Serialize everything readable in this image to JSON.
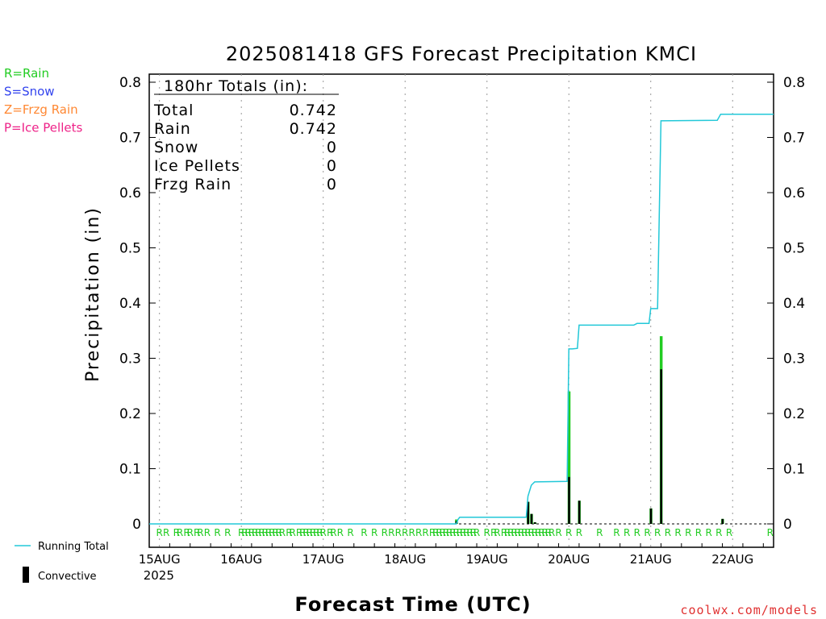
{
  "chart_data": {
    "type": "bar",
    "title": "2025081418 GFS Forecast Precipitation KMCI",
    "xlabel": "Forecast Time (UTC)",
    "ylabel": "Precipitation (in)",
    "ylim": [
      0,
      0.8
    ],
    "yticks": [
      "0",
      "0.1",
      "0.2",
      "0.3",
      "0.4",
      "0.5",
      "0.6",
      "0.7",
      "0.8"
    ],
    "xticks": [
      "15AUG",
      "16AUG",
      "17AUG",
      "18AUG",
      "19AUG",
      "20AUG",
      "21AUG",
      "22AUG"
    ],
    "xtick_year": "2025",
    "grid": true,
    "totals_box": {
      "header": "180hr Totals (in):",
      "rows": [
        {
          "label": "Total",
          "value": "0.742"
        },
        {
          "label": "Rain",
          "value": "0.742"
        },
        {
          "label": "Snow",
          "value": "0"
        },
        {
          "label": "Ice Pellets",
          "value": "0"
        },
        {
          "label": "Frzg Rain",
          "value": "0"
        }
      ]
    },
    "ptype_legend": [
      {
        "label": "R=Rain",
        "color": "#22cc22"
      },
      {
        "label": "S=Snow",
        "color": "#3344ee"
      },
      {
        "label": "Z=Frzg Rain",
        "color": "#ff8833"
      },
      {
        "label": "P=Ice Pellets",
        "color": "#ee2288"
      }
    ],
    "series_legend": [
      {
        "label": "Running Total",
        "color": "#22c8d8"
      },
      {
        "label": "Convective",
        "color": "#000000"
      }
    ],
    "x_units": "hours since 15AUG 00Z",
    "x_range": [
      -3,
      180
    ],
    "rain_bars": [
      {
        "x": 87,
        "v": 0.008,
        "c": 0.005
      },
      {
        "x": 108,
        "v": 0.04,
        "c": 0.04
      },
      {
        "x": 109,
        "v": 0.018,
        "c": 0.018
      },
      {
        "x": 110,
        "v": 0.003,
        "c": 0.003
      },
      {
        "x": 120,
        "v": 0.24,
        "c": 0.085
      },
      {
        "x": 123,
        "v": 0.042,
        "c": 0.042
      },
      {
        "x": 144,
        "v": 0.028,
        "c": 0.028
      },
      {
        "x": 147,
        "v": 0.34,
        "c": 0.28
      },
      {
        "x": 165,
        "v": 0.009,
        "c": 0.009
      }
    ],
    "running_total": [
      [
        -3,
        0
      ],
      [
        87,
        0
      ],
      [
        87.5,
        0.008
      ],
      [
        88,
        0.012
      ],
      [
        107.5,
        0.012
      ],
      [
        108,
        0.05
      ],
      [
        109,
        0.07
      ],
      [
        110,
        0.076
      ],
      [
        119.5,
        0.077
      ],
      [
        120,
        0.317
      ],
      [
        121,
        0.317
      ],
      [
        122.5,
        0.318
      ],
      [
        123,
        0.36
      ],
      [
        139,
        0.36
      ],
      [
        140,
        0.363
      ],
      [
        143.5,
        0.363
      ],
      [
        144,
        0.39
      ],
      [
        146,
        0.39
      ],
      [
        147,
        0.73
      ],
      [
        163.5,
        0.731
      ],
      [
        164.5,
        0.742
      ],
      [
        180,
        0.742
      ]
    ],
    "ptype_rain_hours": [
      0,
      2,
      5,
      6,
      8,
      9,
      11,
      12,
      14,
      17,
      20,
      24,
      25,
      26,
      27,
      28,
      29,
      30,
      31,
      32,
      33,
      34,
      35,
      36,
      38,
      39,
      41,
      42,
      43,
      44,
      45,
      46,
      47,
      48,
      50,
      51,
      53,
      56,
      60,
      63,
      66,
      68,
      70,
      72,
      74,
      76,
      78,
      80,
      81,
      82,
      83,
      84,
      85,
      86,
      87,
      88,
      89,
      90,
      91,
      92,
      93,
      96,
      98,
      99,
      101,
      102,
      103,
      104,
      105,
      106,
      107,
      108,
      109,
      110,
      111,
      112,
      113,
      114,
      115,
      117,
      120,
      123,
      129,
      134,
      137,
      140,
      143,
      146,
      149,
      152,
      155,
      158,
      161,
      164,
      167,
      179
    ],
    "ptype_letter": "R",
    "watermark": "coolwx.com/models"
  }
}
